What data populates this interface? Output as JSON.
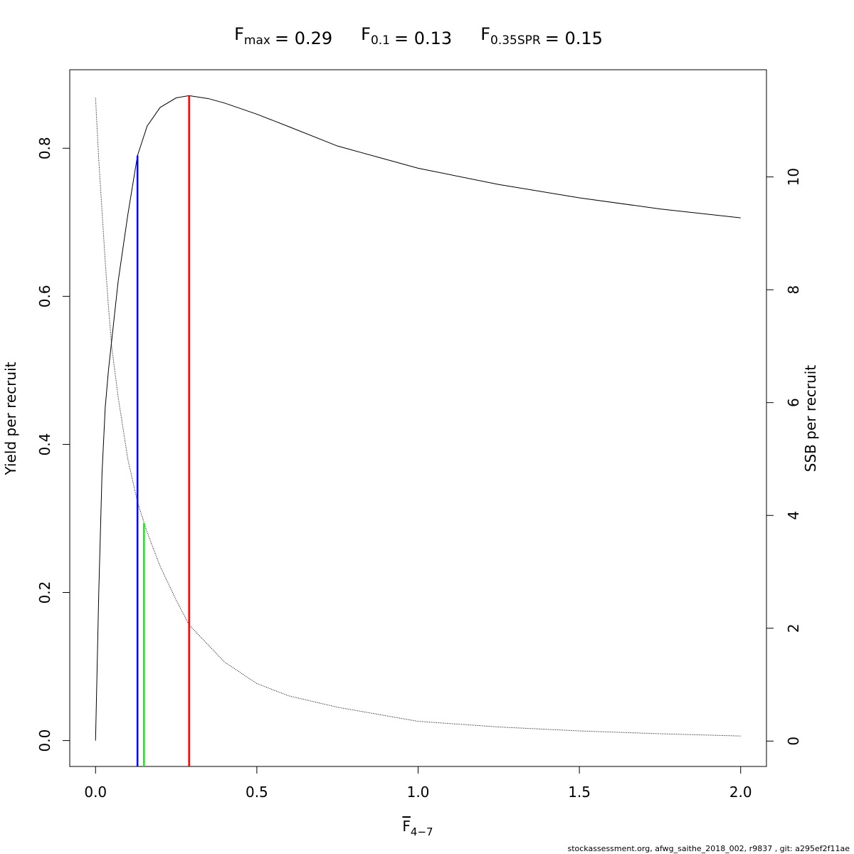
{
  "chart_data": {
    "type": "line",
    "title_parts": [
      {
        "symbol": "F",
        "subscript": "max",
        "value_text": "= 0.29"
      },
      {
        "symbol": "F",
        "subscript": "0.1",
        "value_text": "= 0.13"
      },
      {
        "symbol": "F",
        "subscript": "0.35SPR",
        "value_text": "= 0.15"
      }
    ],
    "xlabel": {
      "symbol": "F",
      "subscript": "4−7"
    },
    "ylabel": "Yield per recruit",
    "y2label": "SSB per recruit",
    "footer": "stockassessment.org, afwg_saithe_2018_002, r9837 , git: a295ef2f11ae",
    "x": [
      0,
      0.01,
      0.02,
      0.03,
      0.04,
      0.05,
      0.07,
      0.1,
      0.13,
      0.16,
      0.2,
      0.25,
      0.29,
      0.35,
      0.4,
      0.5,
      0.6,
      0.75,
      0.9,
      1.0,
      1.25,
      1.5,
      1.75,
      2.0
    ],
    "series": [
      {
        "name": "Yield per recruit",
        "color": "#000000",
        "style": "solid",
        "values": [
          0,
          0.2,
          0.36,
          0.45,
          0.5,
          0.54,
          0.62,
          0.71,
          0.79,
          0.83,
          0.855,
          0.868,
          0.871,
          0.867,
          0.861,
          0.846,
          0.829,
          0.803,
          0.785,
          0.773,
          0.751,
          0.733,
          0.718,
          0.706
        ]
      },
      {
        "name": "SSB per recruit",
        "color": "#000000",
        "style": "dotted",
        "axis": "y2",
        "values": [
          11.4,
          10.3,
          9.4,
          8.5,
          7.7,
          7.0,
          6.1,
          5.0,
          4.24,
          3.7,
          3.1,
          2.5,
          2.06,
          1.7,
          1.4,
          1.02,
          0.8,
          0.6,
          0.45,
          0.35,
          0.25,
          0.18,
          0.13,
          0.09
        ]
      }
    ],
    "reference_lines": [
      {
        "x": 0.29,
        "top": 0.871,
        "color": "#ff0000"
      },
      {
        "x": 0.13,
        "top": 0.79,
        "color": "#0000ff"
      },
      {
        "x": 0.15,
        "top": 0.294,
        "color": "#00ff00"
      }
    ],
    "xlim": [
      -0.08,
      2.08
    ],
    "xticks": [
      {
        "value": 0,
        "label": "0.0"
      },
      0.5,
      {
        "value": 1,
        "label": "1.0"
      },
      1.5,
      {
        "value": 2,
        "label": "2.0"
      }
    ],
    "ylim": [
      -0.035,
      0.906
    ],
    "yticks": [
      {
        "value": 0,
        "label": "0.0"
      },
      0.2,
      0.4,
      0.6,
      0.8
    ],
    "y2lim": [
      -0.45,
      11.9
    ],
    "y2ticks": [
      0,
      2,
      4,
      6,
      8,
      10
    ]
  }
}
